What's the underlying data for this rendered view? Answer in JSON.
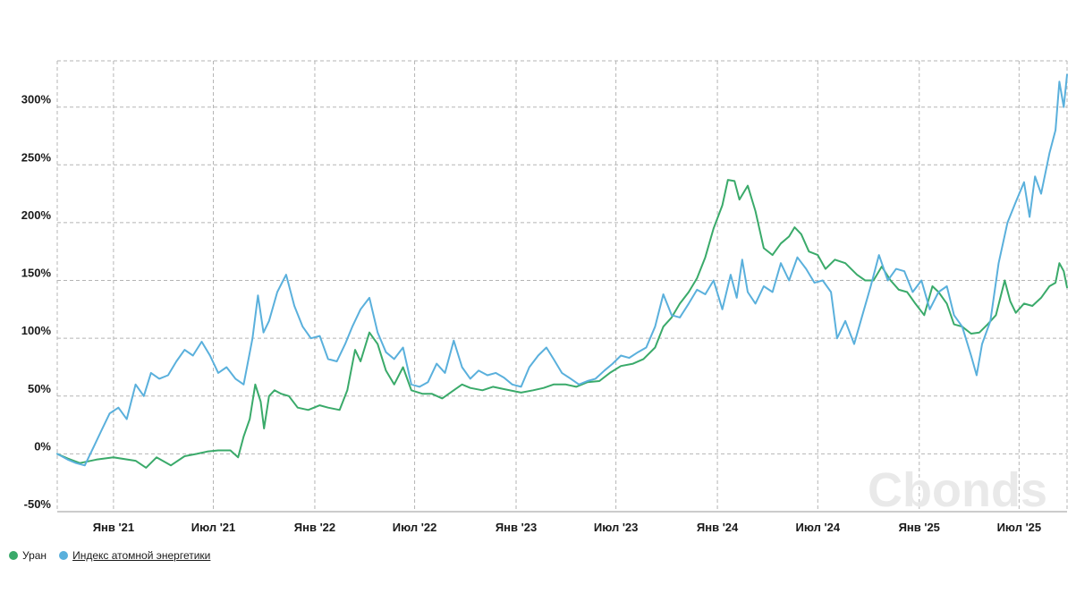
{
  "chart_data": {
    "type": "line",
    "title": "",
    "xlabel": "",
    "ylabel": "",
    "x_range": [
      "2020-09-21",
      "2025-09-26"
    ],
    "ylim": [
      -50,
      340
    ],
    "y_ticks": [
      -50,
      0,
      50,
      100,
      150,
      200,
      250,
      300
    ],
    "y_tick_labels": [
      "-50%",
      "0%",
      "50%",
      "100%",
      "150%",
      "200%",
      "250%",
      "300%"
    ],
    "x_ticks": [
      "2021-01-01",
      "2021-07-01",
      "2022-01-01",
      "2022-07-01",
      "2023-01-01",
      "2023-07-01",
      "2024-01-01",
      "2024-07-01",
      "2025-01-01",
      "2025-07-01"
    ],
    "x_tick_labels": [
      "Янв '21",
      "Июл '21",
      "Янв '22",
      "Июл '22",
      "Янв '23",
      "Июл '23",
      "Янв '24",
      "Июл '24",
      "Янв '25",
      "Июл '25"
    ],
    "grid": true,
    "grid_style": "dashed",
    "legend_position": "bottom-left",
    "series": [
      {
        "name": "Уран",
        "color": "#3aaa6a",
        "points": [
          [
            "2020-09-21",
            0
          ],
          [
            "2020-10-10",
            -4
          ],
          [
            "2020-11-01",
            -8
          ],
          [
            "2020-12-01",
            -5
          ],
          [
            "2021-01-01",
            -3
          ],
          [
            "2021-02-10",
            -6
          ],
          [
            "2021-03-01",
            -12
          ],
          [
            "2021-03-20",
            -3
          ],
          [
            "2021-04-15",
            -10
          ],
          [
            "2021-05-10",
            -2
          ],
          [
            "2021-06-01",
            0
          ],
          [
            "2021-06-20",
            2
          ],
          [
            "2021-07-10",
            3
          ],
          [
            "2021-08-01",
            3
          ],
          [
            "2021-08-15",
            -3
          ],
          [
            "2021-08-25",
            15
          ],
          [
            "2021-09-05",
            30
          ],
          [
            "2021-09-15",
            60
          ],
          [
            "2021-09-25",
            45
          ],
          [
            "2021-10-01",
            22
          ],
          [
            "2021-10-10",
            50
          ],
          [
            "2021-10-20",
            55
          ],
          [
            "2021-11-01",
            52
          ],
          [
            "2021-11-15",
            50
          ],
          [
            "2021-12-01",
            40
          ],
          [
            "2021-12-20",
            38
          ],
          [
            "2022-01-10",
            42
          ],
          [
            "2022-01-25",
            40
          ],
          [
            "2022-02-15",
            38
          ],
          [
            "2022-03-01",
            55
          ],
          [
            "2022-03-15",
            90
          ],
          [
            "2022-03-25",
            80
          ],
          [
            "2022-04-10",
            105
          ],
          [
            "2022-04-25",
            95
          ],
          [
            "2022-05-10",
            72
          ],
          [
            "2022-05-25",
            60
          ],
          [
            "2022-06-10",
            75
          ],
          [
            "2022-06-25",
            55
          ],
          [
            "2022-07-15",
            52
          ],
          [
            "2022-08-01",
            52
          ],
          [
            "2022-08-20",
            48
          ],
          [
            "2022-09-10",
            55
          ],
          [
            "2022-09-25",
            60
          ],
          [
            "2022-10-10",
            57
          ],
          [
            "2022-11-01",
            55
          ],
          [
            "2022-11-20",
            58
          ],
          [
            "2022-12-10",
            56
          ],
          [
            "2023-01-10",
            53
          ],
          [
            "2023-02-01",
            55
          ],
          [
            "2023-02-20",
            57
          ],
          [
            "2023-03-10",
            60
          ],
          [
            "2023-04-01",
            60
          ],
          [
            "2023-04-20",
            58
          ],
          [
            "2023-05-10",
            62
          ],
          [
            "2023-06-01",
            63
          ],
          [
            "2023-06-20",
            70
          ],
          [
            "2023-07-10",
            76
          ],
          [
            "2023-08-01",
            78
          ],
          [
            "2023-08-20",
            82
          ],
          [
            "2023-09-10",
            92
          ],
          [
            "2023-09-25",
            110
          ],
          [
            "2023-10-10",
            118
          ],
          [
            "2023-10-25",
            130
          ],
          [
            "2023-11-10",
            140
          ],
          [
            "2023-11-25",
            152
          ],
          [
            "2023-12-10",
            170
          ],
          [
            "2023-12-25",
            195
          ],
          [
            "2024-01-10",
            215
          ],
          [
            "2024-01-20",
            237
          ],
          [
            "2024-02-01",
            236
          ],
          [
            "2024-02-10",
            220
          ],
          [
            "2024-02-25",
            232
          ],
          [
            "2024-03-10",
            210
          ],
          [
            "2024-03-25",
            178
          ],
          [
            "2024-04-10",
            172
          ],
          [
            "2024-04-25",
            182
          ],
          [
            "2024-05-10",
            188
          ],
          [
            "2024-05-20",
            196
          ],
          [
            "2024-06-01",
            190
          ],
          [
            "2024-06-15",
            175
          ],
          [
            "2024-07-01",
            172
          ],
          [
            "2024-07-15",
            160
          ],
          [
            "2024-08-01",
            168
          ],
          [
            "2024-08-20",
            165
          ],
          [
            "2024-09-10",
            155
          ],
          [
            "2024-09-25",
            150
          ],
          [
            "2024-10-10",
            150
          ],
          [
            "2024-10-25",
            162
          ],
          [
            "2024-11-10",
            150
          ],
          [
            "2024-11-25",
            142
          ],
          [
            "2024-12-10",
            140
          ],
          [
            "2024-12-25",
            130
          ],
          [
            "2025-01-10",
            120
          ],
          [
            "2025-01-25",
            145
          ],
          [
            "2025-02-05",
            140
          ],
          [
            "2025-02-20",
            130
          ],
          [
            "2025-03-05",
            112
          ],
          [
            "2025-03-20",
            110
          ],
          [
            "2025-04-05",
            104
          ],
          [
            "2025-04-20",
            105
          ],
          [
            "2025-05-05",
            112
          ],
          [
            "2025-05-20",
            120
          ],
          [
            "2025-06-05",
            150
          ],
          [
            "2025-06-15",
            132
          ],
          [
            "2025-06-25",
            122
          ],
          [
            "2025-07-10",
            130
          ],
          [
            "2025-07-25",
            128
          ],
          [
            "2025-08-10",
            135
          ],
          [
            "2025-08-25",
            145
          ],
          [
            "2025-09-05",
            148
          ],
          [
            "2025-09-12",
            165
          ],
          [
            "2025-09-20",
            158
          ],
          [
            "2025-09-26",
            144
          ]
        ]
      },
      {
        "name": "Индекс атомной энергетики",
        "color": "#5ab0dc",
        "points": [
          [
            "2020-09-21",
            0
          ],
          [
            "2020-10-10",
            -5
          ],
          [
            "2020-10-25",
            -8
          ],
          [
            "2020-11-10",
            -10
          ],
          [
            "2020-11-25",
            5
          ],
          [
            "2020-12-10",
            20
          ],
          [
            "2020-12-25",
            35
          ],
          [
            "2021-01-10",
            40
          ],
          [
            "2021-01-25",
            30
          ],
          [
            "2021-02-10",
            60
          ],
          [
            "2021-02-25",
            50
          ],
          [
            "2021-03-10",
            70
          ],
          [
            "2021-03-25",
            65
          ],
          [
            "2021-04-10",
            68
          ],
          [
            "2021-04-25",
            80
          ],
          [
            "2021-05-10",
            90
          ],
          [
            "2021-05-25",
            85
          ],
          [
            "2021-06-10",
            97
          ],
          [
            "2021-06-25",
            85
          ],
          [
            "2021-07-10",
            70
          ],
          [
            "2021-07-25",
            75
          ],
          [
            "2021-08-10",
            65
          ],
          [
            "2021-08-25",
            60
          ],
          [
            "2021-09-10",
            100
          ],
          [
            "2021-09-20",
            137
          ],
          [
            "2021-09-30",
            105
          ],
          [
            "2021-10-10",
            115
          ],
          [
            "2021-10-25",
            140
          ],
          [
            "2021-11-10",
            155
          ],
          [
            "2021-11-25",
            128
          ],
          [
            "2021-12-10",
            110
          ],
          [
            "2021-12-25",
            100
          ],
          [
            "2022-01-10",
            102
          ],
          [
            "2022-01-25",
            82
          ],
          [
            "2022-02-10",
            80
          ],
          [
            "2022-02-25",
            95
          ],
          [
            "2022-03-10",
            110
          ],
          [
            "2022-03-25",
            125
          ],
          [
            "2022-04-10",
            135
          ],
          [
            "2022-04-25",
            105
          ],
          [
            "2022-05-10",
            88
          ],
          [
            "2022-05-25",
            82
          ],
          [
            "2022-06-10",
            92
          ],
          [
            "2022-06-25",
            60
          ],
          [
            "2022-07-10",
            58
          ],
          [
            "2022-07-25",
            62
          ],
          [
            "2022-08-10",
            78
          ],
          [
            "2022-08-25",
            70
          ],
          [
            "2022-09-10",
            98
          ],
          [
            "2022-09-25",
            75
          ],
          [
            "2022-10-10",
            65
          ],
          [
            "2022-10-25",
            72
          ],
          [
            "2022-11-10",
            68
          ],
          [
            "2022-11-25",
            70
          ],
          [
            "2022-12-10",
            66
          ],
          [
            "2022-12-25",
            60
          ],
          [
            "2023-01-10",
            58
          ],
          [
            "2023-01-25",
            75
          ],
          [
            "2023-02-10",
            85
          ],
          [
            "2023-02-25",
            92
          ],
          [
            "2023-03-10",
            82
          ],
          [
            "2023-03-25",
            70
          ],
          [
            "2023-04-10",
            65
          ],
          [
            "2023-04-25",
            60
          ],
          [
            "2023-05-10",
            63
          ],
          [
            "2023-05-25",
            65
          ],
          [
            "2023-06-10",
            72
          ],
          [
            "2023-06-25",
            78
          ],
          [
            "2023-07-10",
            85
          ],
          [
            "2023-07-25",
            83
          ],
          [
            "2023-08-10",
            88
          ],
          [
            "2023-08-25",
            92
          ],
          [
            "2023-09-10",
            110
          ],
          [
            "2023-09-25",
            138
          ],
          [
            "2023-10-10",
            120
          ],
          [
            "2023-10-25",
            118
          ],
          [
            "2023-11-10",
            130
          ],
          [
            "2023-11-25",
            142
          ],
          [
            "2023-12-10",
            138
          ],
          [
            "2023-12-25",
            150
          ],
          [
            "2024-01-10",
            125
          ],
          [
            "2024-01-25",
            155
          ],
          [
            "2024-02-05",
            135
          ],
          [
            "2024-02-15",
            168
          ],
          [
            "2024-02-25",
            140
          ],
          [
            "2024-03-10",
            130
          ],
          [
            "2024-03-25",
            145
          ],
          [
            "2024-04-10",
            140
          ],
          [
            "2024-04-25",
            165
          ],
          [
            "2024-05-10",
            150
          ],
          [
            "2024-05-25",
            170
          ],
          [
            "2024-06-10",
            160
          ],
          [
            "2024-06-25",
            148
          ],
          [
            "2024-07-10",
            150
          ],
          [
            "2024-07-25",
            140
          ],
          [
            "2024-08-05",
            100
          ],
          [
            "2024-08-20",
            115
          ],
          [
            "2024-09-05",
            95
          ],
          [
            "2024-09-20",
            120
          ],
          [
            "2024-10-05",
            145
          ],
          [
            "2024-10-20",
            172
          ],
          [
            "2024-11-05",
            150
          ],
          [
            "2024-11-20",
            160
          ],
          [
            "2024-12-05",
            158
          ],
          [
            "2024-12-20",
            140
          ],
          [
            "2025-01-05",
            150
          ],
          [
            "2025-01-20",
            125
          ],
          [
            "2025-02-05",
            140
          ],
          [
            "2025-02-20",
            145
          ],
          [
            "2025-03-05",
            120
          ],
          [
            "2025-03-20",
            110
          ],
          [
            "2025-04-05",
            85
          ],
          [
            "2025-04-15",
            68
          ],
          [
            "2025-04-25",
            95
          ],
          [
            "2025-05-10",
            115
          ],
          [
            "2025-05-25",
            165
          ],
          [
            "2025-06-10",
            200
          ],
          [
            "2025-06-25",
            218
          ],
          [
            "2025-07-10",
            235
          ],
          [
            "2025-07-20",
            205
          ],
          [
            "2025-07-30",
            240
          ],
          [
            "2025-08-10",
            225
          ],
          [
            "2025-08-25",
            260
          ],
          [
            "2025-09-05",
            280
          ],
          [
            "2025-09-12",
            322
          ],
          [
            "2025-09-20",
            300
          ],
          [
            "2025-09-26",
            328
          ]
        ]
      }
    ]
  },
  "legend": {
    "items": [
      {
        "label": "Уран",
        "color": "#3aaa6a"
      },
      {
        "label": "Индекс атомной энергетики",
        "color": "#5ab0dc"
      }
    ]
  },
  "watermark": {
    "text": "Cbonds"
  }
}
